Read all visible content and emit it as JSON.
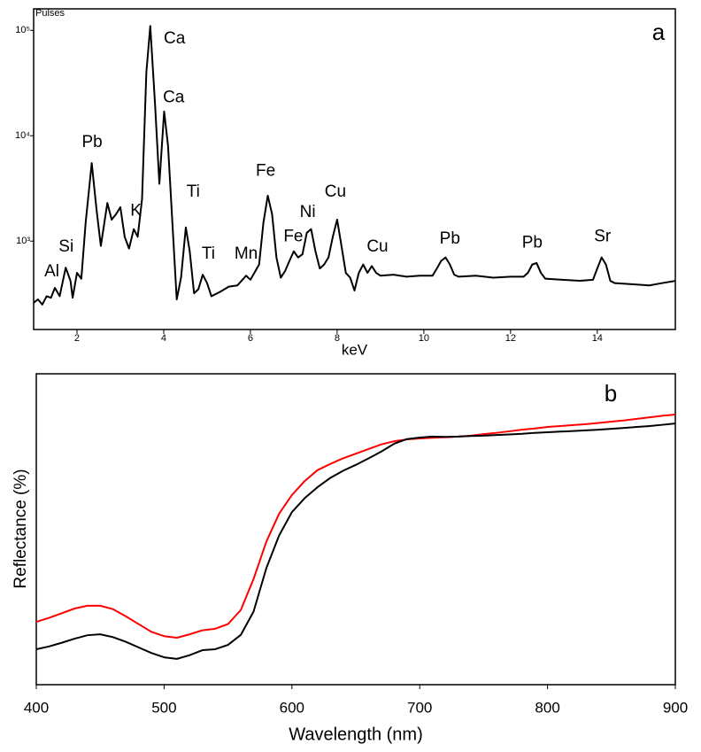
{
  "chart_data": [
    {
      "type": "line",
      "y_label": "Pulses",
      "x_label": "keV",
      "panel": "a",
      "log_y": true,
      "color": "#000000",
      "xlim": [
        1,
        15.8
      ],
      "xticks": [
        2,
        4,
        6,
        8,
        10,
        12,
        14
      ],
      "ylim": [
        145,
        160000
      ],
      "yticks": [
        {
          "value": 1000,
          "label": "10³"
        },
        {
          "value": 10000,
          "label": "10⁴"
        },
        {
          "value": 100000,
          "label": "10⁵"
        }
      ],
      "x": [
        1.0,
        1.1,
        1.2,
        1.3,
        1.4,
        1.49,
        1.6,
        1.74,
        1.85,
        1.9,
        2.0,
        2.1,
        2.2,
        2.34,
        2.45,
        2.55,
        2.7,
        2.8,
        2.9,
        3.0,
        3.1,
        3.2,
        3.31,
        3.4,
        3.5,
        3.6,
        3.69,
        3.8,
        3.9,
        4.01,
        4.1,
        4.2,
        4.3,
        4.4,
        4.51,
        4.6,
        4.7,
        4.8,
        4.9,
        5.0,
        5.1,
        5.3,
        5.5,
        5.7,
        5.9,
        6.0,
        6.2,
        6.3,
        6.4,
        6.5,
        6.6,
        6.7,
        6.8,
        6.9,
        7.0,
        7.1,
        7.2,
        7.3,
        7.4,
        7.5,
        7.6,
        7.7,
        7.8,
        7.9,
        8.0,
        8.1,
        8.2,
        8.3,
        8.4,
        8.5,
        8.6,
        8.7,
        8.8,
        8.9,
        9.0,
        9.3,
        9.6,
        9.9,
        10.2,
        10.3,
        10.4,
        10.5,
        10.6,
        10.7,
        10.8,
        11.2,
        11.6,
        12.0,
        12.3,
        12.4,
        12.5,
        12.6,
        12.7,
        12.8,
        13.2,
        13.6,
        13.9,
        14.0,
        14.1,
        14.2,
        14.3,
        14.4,
        14.8,
        15.2,
        15.5,
        15.8
      ],
      "values": [
        260,
        280,
        250,
        300,
        290,
        360,
        300,
        560,
        420,
        290,
        500,
        440,
        1500,
        5500,
        2000,
        900,
        2300,
        1600,
        1800,
        2100,
        1100,
        850,
        1300,
        1100,
        2500,
        40000,
        110000,
        20000,
        3500,
        17000,
        8000,
        1500,
        280,
        450,
        1350,
        800,
        320,
        350,
        480,
        400,
        300,
        330,
        370,
        380,
        470,
        430,
        600,
        1500,
        2700,
        1800,
        700,
        450,
        520,
        650,
        800,
        700,
        750,
        1200,
        1300,
        800,
        550,
        600,
        700,
        1100,
        1600,
        900,
        500,
        450,
        340,
        500,
        600,
        500,
        580,
        500,
        470,
        480,
        460,
        470,
        470,
        550,
        650,
        700,
        600,
        480,
        460,
        470,
        450,
        460,
        460,
        500,
        600,
        620,
        500,
        440,
        430,
        420,
        430,
        550,
        700,
        600,
        420,
        400,
        390,
        380,
        400,
        420
      ],
      "annotations": [
        {
          "text": "Al",
          "x": 1.42,
          "y": 510
        },
        {
          "text": "Si",
          "x": 1.75,
          "y": 874
        },
        {
          "text": "Pb",
          "x": 2.35,
          "y": 8570
        },
        {
          "text": "K",
          "x": 3.36,
          "y": 1930
        },
        {
          "text": "Ca",
          "x": 4.25,
          "y": 83000
        },
        {
          "text": "Ca",
          "x": 4.23,
          "y": 22900
        },
        {
          "text": "Ti",
          "x": 4.68,
          "y": 2900
        },
        {
          "text": "Ti",
          "x": 5.03,
          "y": 750
        },
        {
          "text": "Mn",
          "x": 5.9,
          "y": 750
        },
        {
          "text": "Fe",
          "x": 6.35,
          "y": 4600
        },
        {
          "text": "Fe",
          "x": 6.99,
          "y": 1100
        },
        {
          "text": "Ni",
          "x": 7.32,
          "y": 1860
        },
        {
          "text": "Cu",
          "x": 7.96,
          "y": 2900
        },
        {
          "text": "Cu",
          "x": 8.93,
          "y": 874
        },
        {
          "text": "Pb",
          "x": 10.6,
          "y": 1040
        },
        {
          "text": "Pb",
          "x": 12.5,
          "y": 960
        },
        {
          "text": "Sr",
          "x": 14.12,
          "y": 1100
        }
      ]
    },
    {
      "type": "line",
      "y_label": "Reflectance (%)",
      "x_label": "Wavelength (nm)",
      "panel": "b",
      "xlim": [
        400,
        900
      ],
      "xticks": [
        400,
        500,
        600,
        700,
        800,
        900
      ],
      "ylim": [
        0,
        100
      ],
      "x": [
        400,
        410,
        420,
        430,
        440,
        450,
        460,
        470,
        480,
        490,
        500,
        510,
        520,
        530,
        540,
        550,
        560,
        570,
        580,
        590,
        600,
        610,
        620,
        630,
        640,
        650,
        660,
        670,
        680,
        690,
        700,
        710,
        720,
        730,
        740,
        750,
        760,
        770,
        780,
        790,
        800,
        810,
        820,
        830,
        840,
        850,
        860,
        870,
        880,
        890,
        900
      ],
      "series": [
        {
          "color": "#ff0000",
          "values": [
            20.2,
            21.5,
            23,
            24.5,
            25.4,
            25.4,
            24.3,
            22,
            19.5,
            17,
            15.6,
            15.1,
            16.2,
            17.5,
            18,
            19.5,
            24,
            34,
            46,
            55,
            61,
            65.5,
            69,
            71,
            72.8,
            74.3,
            75.8,
            77.3,
            78.3,
            78.9,
            79.2,
            79.4,
            79.6,
            79.8,
            80.1,
            80.6,
            81,
            81.5,
            82,
            82.4,
            82.9,
            83.2,
            83.5,
            83.8,
            84.2,
            84.6,
            85,
            85.5,
            86,
            86.5,
            86.9
          ]
        },
        {
          "color": "#000000",
          "values": [
            11.4,
            12.3,
            13.5,
            14.8,
            15.9,
            16.2,
            15.3,
            13.8,
            12,
            10.2,
            8.8,
            8.3,
            9.5,
            11.1,
            11.4,
            12.8,
            16,
            23.5,
            37.5,
            48,
            55.5,
            60,
            63.5,
            66.5,
            68.8,
            70.7,
            72.8,
            75,
            77.5,
            79,
            79.5,
            79.8,
            79.7,
            79.8,
            80,
            80.1,
            80.3,
            80.5,
            80.7,
            81,
            81.2,
            81.4,
            81.6,
            81.8,
            82,
            82.3,
            82.6,
            82.9,
            83.2,
            83.6,
            84
          ]
        }
      ]
    }
  ]
}
